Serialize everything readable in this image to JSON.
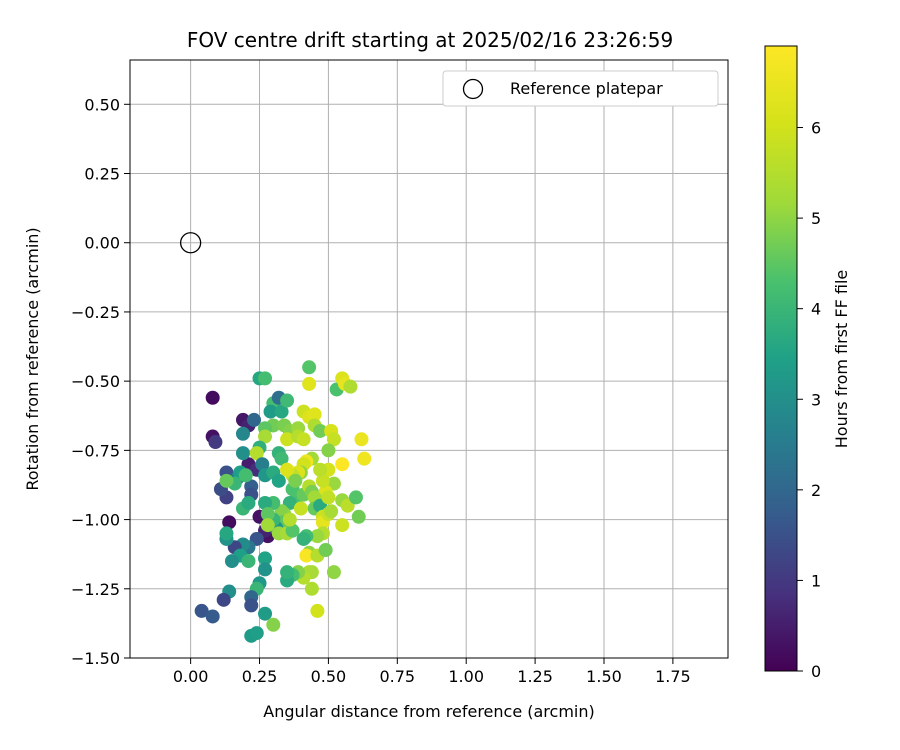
{
  "chart_data": {
    "type": "scatter",
    "title": "FOV centre drift starting at 2025/02/16 23:26:59",
    "xlabel": "Angular distance from reference (arcmin)",
    "ylabel": "Rotation from reference (arcmin)",
    "xlim": [
      -0.22,
      1.95
    ],
    "ylim": [
      -1.5,
      0.66
    ],
    "xticks": [
      "0.00",
      "0.25",
      "0.50",
      "0.75",
      "1.00",
      "1.25",
      "1.50",
      "1.75"
    ],
    "xtick_values": [
      0,
      0.25,
      0.5,
      0.75,
      1.0,
      1.25,
      1.5,
      1.75
    ],
    "yticks": [
      "0.50",
      "0.25",
      "0.00",
      "−0.25",
      "−0.50",
      "−0.75",
      "−1.00",
      "−1.25",
      "−1.50"
    ],
    "ytick_values": [
      0.5,
      0.25,
      0,
      -0.25,
      -0.5,
      -0.75,
      -1.0,
      -1.25,
      -1.5
    ],
    "grid": true,
    "legend": {
      "placement": "top-right",
      "label": "Reference platepar"
    },
    "reference_point": {
      "x": 0,
      "y": 0
    },
    "colorbar": {
      "label": "Hours from first FF file",
      "range": [
        0,
        6.9
      ],
      "ticks": [
        "0",
        "1",
        "2",
        "3",
        "4",
        "5",
        "6"
      ],
      "tick_values": [
        0,
        1,
        2,
        3,
        4,
        5,
        6
      ],
      "colormap": "viridis"
    },
    "series": [
      {
        "points": [
          [
            0.08,
            -0.56,
            0.2
          ],
          [
            0.08,
            -0.7,
            0.3
          ],
          [
            0.09,
            -0.72,
            1.0
          ],
          [
            0.19,
            -0.64,
            0.4
          ],
          [
            0.21,
            -0.66,
            0.6
          ],
          [
            0.23,
            -0.64,
            2.0
          ],
          [
            0.21,
            -0.8,
            0.5
          ],
          [
            0.24,
            -0.82,
            0.8
          ],
          [
            0.22,
            -0.88,
            1.8
          ],
          [
            0.22,
            -0.91,
            1.5
          ],
          [
            0.14,
            -1.01,
            0.2
          ],
          [
            0.13,
            -0.92,
            1.2
          ],
          [
            0.11,
            -0.89,
            1.4
          ],
          [
            0.13,
            -0.83,
            1.5
          ],
          [
            0.17,
            -0.85,
            2.6
          ],
          [
            0.18,
            -0.83,
            3.4
          ],
          [
            0.19,
            -0.76,
            3.0
          ],
          [
            0.19,
            -0.69,
            2.8
          ],
          [
            0.2,
            -0.84,
            4.2
          ],
          [
            0.16,
            -0.87,
            4.0
          ],
          [
            0.13,
            -0.86,
            4.6
          ],
          [
            0.19,
            -0.96,
            4.0
          ],
          [
            0.21,
            -0.94,
            3.7
          ],
          [
            0.25,
            -0.99,
            0.3
          ],
          [
            0.28,
            -1.06,
            0.3
          ],
          [
            0.27,
            -1.04,
            0.6
          ],
          [
            0.24,
            -1.07,
            1.6
          ],
          [
            0.21,
            -1.1,
            2.4
          ],
          [
            0.19,
            -1.09,
            2.9
          ],
          [
            0.16,
            -1.1,
            1.3
          ],
          [
            0.13,
            -1.07,
            3.1
          ],
          [
            0.13,
            -1.05,
            3.6
          ],
          [
            0.18,
            -1.13,
            3.4
          ],
          [
            0.15,
            -1.15,
            3.0
          ],
          [
            0.21,
            -1.15,
            4.0
          ],
          [
            0.27,
            -1.14,
            3.5
          ],
          [
            0.27,
            -1.18,
            3.1
          ],
          [
            0.25,
            -1.23,
            3.2
          ],
          [
            0.24,
            -1.25,
            4.0
          ],
          [
            0.22,
            -1.28,
            2.0
          ],
          [
            0.22,
            -1.31,
            1.5
          ],
          [
            0.14,
            -1.26,
            3.0
          ],
          [
            0.12,
            -1.29,
            1.3
          ],
          [
            0.04,
            -1.33,
            1.6
          ],
          [
            0.08,
            -1.35,
            1.7
          ],
          [
            0.22,
            -1.42,
            3.3
          ],
          [
            0.24,
            -1.41,
            3.4
          ],
          [
            0.27,
            -1.34,
            3.3
          ],
          [
            0.3,
            -1.38,
            4.9
          ],
          [
            0.25,
            -0.49,
            3.6
          ],
          [
            0.27,
            -0.49,
            4.2
          ],
          [
            0.3,
            -0.58,
            4.2
          ],
          [
            0.32,
            -0.56,
            2.2
          ],
          [
            0.29,
            -0.61,
            3.3
          ],
          [
            0.3,
            -0.66,
            4.7
          ],
          [
            0.27,
            -0.67,
            4.5
          ],
          [
            0.27,
            -0.7,
            5.3
          ],
          [
            0.25,
            -0.74,
            3.8
          ],
          [
            0.24,
            -0.76,
            5.5
          ],
          [
            0.26,
            -0.8,
            2.6
          ],
          [
            0.27,
            -0.84,
            3.2
          ],
          [
            0.3,
            -0.83,
            3.7
          ],
          [
            0.32,
            -0.86,
            3.5
          ],
          [
            0.32,
            -0.76,
            3.9
          ],
          [
            0.33,
            -0.78,
            4.1
          ],
          [
            0.33,
            -0.61,
            3.6
          ],
          [
            0.35,
            -0.57,
            4.1
          ],
          [
            0.34,
            -0.66,
            4.8
          ],
          [
            0.36,
            -0.68,
            4.9
          ],
          [
            0.35,
            -0.71,
            5.9
          ],
          [
            0.39,
            -0.67,
            5.1
          ],
          [
            0.39,
            -0.7,
            5.5
          ],
          [
            0.41,
            -0.71,
            5.8
          ],
          [
            0.41,
            -0.61,
            5.9
          ],
          [
            0.43,
            -0.63,
            6.2
          ],
          [
            0.45,
            -0.62,
            6.3
          ],
          [
            0.45,
            -0.66,
            5.4
          ],
          [
            0.47,
            -0.68,
            4.7
          ],
          [
            0.43,
            -0.51,
            6.3
          ],
          [
            0.43,
            -0.45,
            4.4
          ],
          [
            0.51,
            -0.68,
            6.1
          ],
          [
            0.52,
            -0.71,
            5.8
          ],
          [
            0.53,
            -0.53,
            4.3
          ],
          [
            0.55,
            -0.49,
            6.2
          ],
          [
            0.56,
            -0.51,
            6.4
          ],
          [
            0.58,
            -0.52,
            5.4
          ],
          [
            0.62,
            -0.71,
            6.5
          ],
          [
            0.63,
            -0.78,
            6.6
          ],
          [
            0.55,
            -0.8,
            6.9
          ],
          [
            0.5,
            -0.75,
            4.9
          ],
          [
            0.5,
            -0.82,
            6.0
          ],
          [
            0.52,
            -0.87,
            5.1
          ],
          [
            0.49,
            -0.9,
            6.2
          ],
          [
            0.48,
            -0.86,
            5.8
          ],
          [
            0.47,
            -0.82,
            5.6
          ],
          [
            0.44,
            -0.78,
            5.2
          ],
          [
            0.42,
            -0.79,
            6.6
          ],
          [
            0.41,
            -0.8,
            6.0
          ],
          [
            0.4,
            -0.83,
            5.0
          ],
          [
            0.39,
            -0.83,
            6.2
          ],
          [
            0.37,
            -0.84,
            5.7
          ],
          [
            0.35,
            -0.82,
            6.2
          ],
          [
            0.37,
            -0.89,
            4.3
          ],
          [
            0.38,
            -0.86,
            4.8
          ],
          [
            0.38,
            -0.93,
            4.3
          ],
          [
            0.36,
            -0.94,
            3.9
          ],
          [
            0.34,
            -0.98,
            5.0
          ],
          [
            0.33,
            -0.97,
            4.9
          ],
          [
            0.33,
            -1.01,
            4.5
          ],
          [
            0.31,
            -1.03,
            3.1
          ],
          [
            0.3,
            -1.0,
            4.0
          ],
          [
            0.3,
            -0.94,
            4.2
          ],
          [
            0.27,
            -0.94,
            3.7
          ],
          [
            0.28,
            -0.98,
            4.5
          ],
          [
            0.28,
            -1.02,
            5.2
          ],
          [
            0.32,
            -1.05,
            5.1
          ],
          [
            0.35,
            -1.05,
            5.3
          ],
          [
            0.37,
            -1.04,
            4.4
          ],
          [
            0.36,
            -1.0,
            5.5
          ],
          [
            0.4,
            -0.96,
            5.8
          ],
          [
            0.41,
            -0.91,
            4.6
          ],
          [
            0.43,
            -0.88,
            5.5
          ],
          [
            0.44,
            -0.9,
            4.8
          ],
          [
            0.45,
            -0.92,
            5.2
          ],
          [
            0.45,
            -0.96,
            4.6
          ],
          [
            0.47,
            -0.95,
            3.7
          ],
          [
            0.5,
            -0.92,
            5.7
          ],
          [
            0.48,
            -0.99,
            5.9
          ],
          [
            0.48,
            -1.01,
            6.4
          ],
          [
            0.5,
            -0.98,
            5.8
          ],
          [
            0.51,
            -0.97,
            5.3
          ],
          [
            0.55,
            -0.93,
            5.1
          ],
          [
            0.57,
            -0.95,
            5.6
          ],
          [
            0.6,
            -0.92,
            4.4
          ],
          [
            0.61,
            -0.99,
            4.7
          ],
          [
            0.55,
            -1.02,
            5.9
          ],
          [
            0.48,
            -1.05,
            5.5
          ],
          [
            0.46,
            -1.06,
            5.1
          ],
          [
            0.42,
            -1.06,
            4.2
          ],
          [
            0.41,
            -1.07,
            3.9
          ],
          [
            0.43,
            -1.12,
            5.0
          ],
          [
            0.42,
            -1.13,
            6.8
          ],
          [
            0.46,
            -1.13,
            5.5
          ],
          [
            0.49,
            -1.11,
            4.7
          ],
          [
            0.52,
            -1.19,
            5.0
          ],
          [
            0.43,
            -1.19,
            5.4
          ],
          [
            0.44,
            -1.19,
            5.3
          ],
          [
            0.41,
            -1.21,
            5.5
          ],
          [
            0.44,
            -1.25,
            5.4
          ],
          [
            0.39,
            -1.19,
            4.9
          ],
          [
            0.37,
            -1.2,
            4.2
          ],
          [
            0.35,
            -1.22,
            3.7
          ],
          [
            0.35,
            -1.19,
            3.9
          ],
          [
            0.46,
            -1.33,
            6.0
          ]
        ]
      }
    ]
  }
}
